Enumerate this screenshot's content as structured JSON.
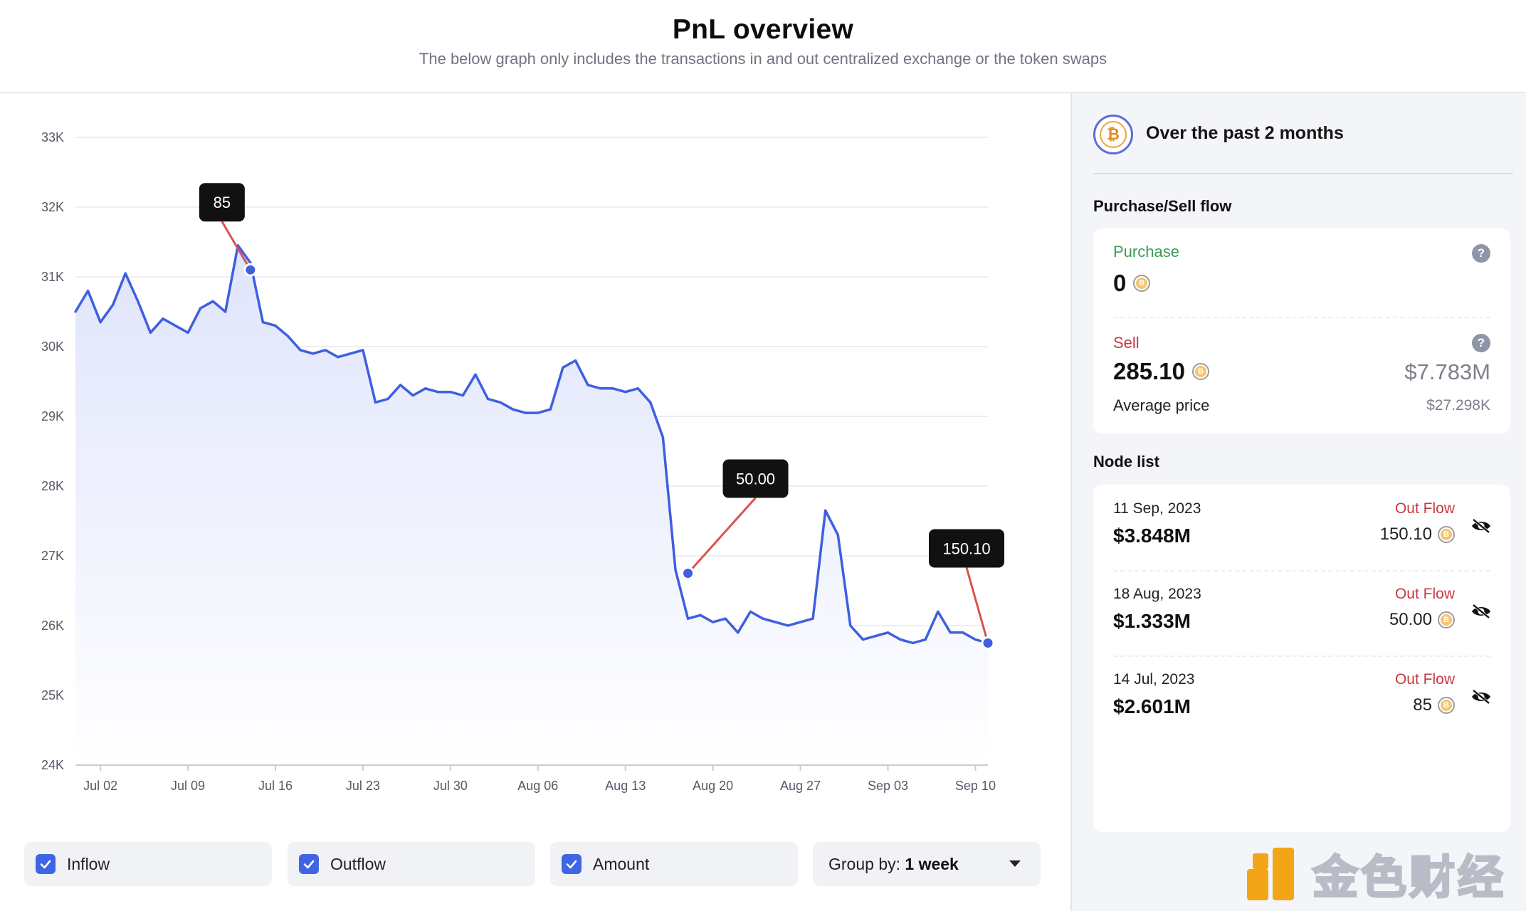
{
  "header": {
    "title": "PnL overview",
    "subtitle": "The below graph only includes the transactions in and out centralized exchange or the token swaps"
  },
  "colors": {
    "accent": "#3f64e4",
    "line": "#3f5fe0",
    "annotation_line": "#d9534f",
    "purchase": "#3f9a55",
    "sell": "#c9393f"
  },
  "chart_data": {
    "type": "line",
    "title": "",
    "xlabel": "",
    "ylabel": "",
    "y_ticks": [
      "33K",
      "32K",
      "31K",
      "30K",
      "29K",
      "28K",
      "27K",
      "26K",
      "25K",
      "24K"
    ],
    "ylim": [
      24000,
      33000
    ],
    "x_ticks": [
      "Jul 02",
      "Jul 09",
      "Jul 16",
      "Jul 23",
      "Jul 30",
      "Aug 06",
      "Aug 13",
      "Aug 20",
      "Aug 27",
      "Sep 03",
      "Sep 10"
    ],
    "xlim": [
      "2023-06-30",
      "2023-09-11"
    ],
    "grid": true,
    "series": [
      {
        "name": "",
        "points": [
          [
            "2023-06-30",
            30500
          ],
          [
            "2023-07-01",
            30800
          ],
          [
            "2023-07-02",
            30350
          ],
          [
            "2023-07-03",
            30600
          ],
          [
            "2023-07-04",
            31050
          ],
          [
            "2023-07-05",
            30650
          ],
          [
            "2023-07-06",
            30200
          ],
          [
            "2023-07-07",
            30400
          ],
          [
            "2023-07-08",
            30300
          ],
          [
            "2023-07-09",
            30200
          ],
          [
            "2023-07-10",
            30550
          ],
          [
            "2023-07-11",
            30650
          ],
          [
            "2023-07-12",
            30500
          ],
          [
            "2023-07-13",
            31450
          ],
          [
            "2023-07-14",
            31200
          ],
          [
            "2023-07-15",
            30350
          ],
          [
            "2023-07-16",
            30300
          ],
          [
            "2023-07-17",
            30150
          ],
          [
            "2023-07-18",
            29950
          ],
          [
            "2023-07-19",
            29900
          ],
          [
            "2023-07-20",
            29950
          ],
          [
            "2023-07-21",
            29850
          ],
          [
            "2023-07-22",
            29900
          ],
          [
            "2023-07-23",
            29950
          ],
          [
            "2023-07-24",
            29200
          ],
          [
            "2023-07-25",
            29250
          ],
          [
            "2023-07-26",
            29450
          ],
          [
            "2023-07-27",
            29300
          ],
          [
            "2023-07-28",
            29400
          ],
          [
            "2023-07-29",
            29350
          ],
          [
            "2023-07-30",
            29350
          ],
          [
            "2023-07-31",
            29300
          ],
          [
            "2023-08-01",
            29600
          ],
          [
            "2023-08-02",
            29250
          ],
          [
            "2023-08-03",
            29200
          ],
          [
            "2023-08-04",
            29100
          ],
          [
            "2023-08-05",
            29050
          ],
          [
            "2023-08-06",
            29050
          ],
          [
            "2023-08-07",
            29100
          ],
          [
            "2023-08-08",
            29700
          ],
          [
            "2023-08-09",
            29800
          ],
          [
            "2023-08-10",
            29450
          ],
          [
            "2023-08-11",
            29400
          ],
          [
            "2023-08-12",
            29400
          ],
          [
            "2023-08-13",
            29350
          ],
          [
            "2023-08-14",
            29400
          ],
          [
            "2023-08-15",
            29200
          ],
          [
            "2023-08-16",
            28700
          ],
          [
            "2023-08-17",
            26800
          ],
          [
            "2023-08-18",
            26100
          ],
          [
            "2023-08-19",
            26150
          ],
          [
            "2023-08-20",
            26050
          ],
          [
            "2023-08-21",
            26100
          ],
          [
            "2023-08-22",
            25900
          ],
          [
            "2023-08-23",
            26200
          ],
          [
            "2023-08-24",
            26100
          ],
          [
            "2023-08-25",
            26050
          ],
          [
            "2023-08-26",
            26000
          ],
          [
            "2023-08-27",
            26050
          ],
          [
            "2023-08-28",
            26100
          ],
          [
            "2023-08-29",
            27650
          ],
          [
            "2023-08-30",
            27300
          ],
          [
            "2023-08-31",
            26000
          ],
          [
            "2023-09-01",
            25800
          ],
          [
            "2023-09-02",
            25850
          ],
          [
            "2023-09-03",
            25900
          ],
          [
            "2023-09-04",
            25800
          ],
          [
            "2023-09-05",
            25750
          ],
          [
            "2023-09-06",
            25800
          ],
          [
            "2023-09-07",
            26200
          ],
          [
            "2023-09-08",
            25900
          ],
          [
            "2023-09-09",
            25900
          ],
          [
            "2023-09-10",
            25800
          ],
          [
            "2023-09-11",
            25750
          ]
        ]
      }
    ],
    "annotations": [
      {
        "label": "85",
        "date": "2023-07-14",
        "price": 31100
      },
      {
        "label": "50.00",
        "date": "2023-08-18",
        "price": 26750
      },
      {
        "label": "150.10",
        "date": "2023-09-11",
        "price": 25750
      }
    ]
  },
  "legend": {
    "inflow": "Inflow",
    "outflow": "Outflow",
    "amount": "Amount",
    "group_by_prefix": "Group by:",
    "group_by_value": "1 week"
  },
  "summary": {
    "period": "Over the past 2 months",
    "flow_title": "Purchase/Sell flow",
    "purchase_label": "Purchase",
    "purchase_value": "0",
    "sell_label": "Sell",
    "sell_value": "285.10",
    "sell_usd": "$7.783M",
    "avg_label": "Average price",
    "avg_value": "$27.298K"
  },
  "node_list": {
    "title": "Node list",
    "nodes": [
      {
        "date": "11 Sep, 2023",
        "value": "$3.848M",
        "flow": "Out Flow",
        "amount": "150.10"
      },
      {
        "date": "18 Aug, 2023",
        "value": "$1.333M",
        "flow": "Out Flow",
        "amount": "50.00"
      },
      {
        "date": "14 Jul, 2023",
        "value": "$2.601M",
        "flow": "Out Flow",
        "amount": "85"
      }
    ]
  },
  "watermark": {
    "text": "金色财经"
  }
}
